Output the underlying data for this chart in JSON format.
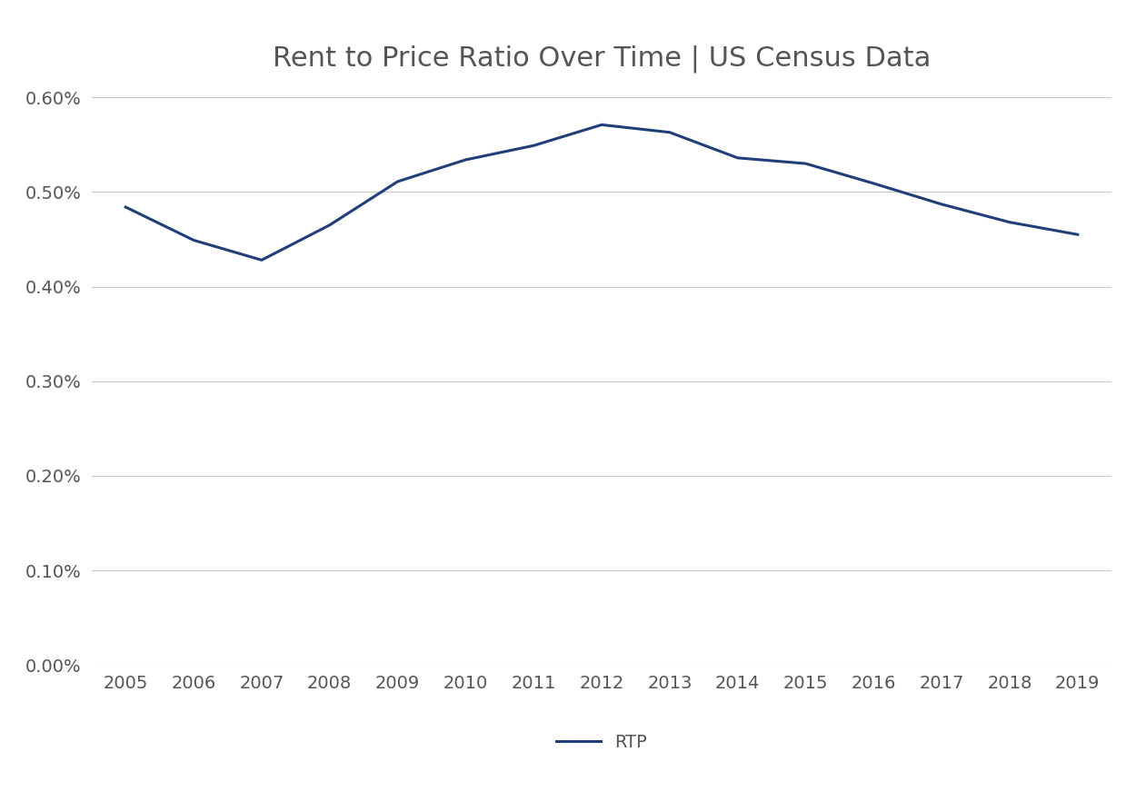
{
  "title": "Rent to Price Ratio Over Time | US Census Data",
  "years": [
    2005,
    2006,
    2007,
    2008,
    2009,
    2010,
    2011,
    2012,
    2013,
    2014,
    2015,
    2016,
    2017,
    2018,
    2019
  ],
  "rtp": [
    0.00484,
    0.00449,
    0.00428,
    0.00465,
    0.00511,
    0.00534,
    0.00549,
    0.00571,
    0.00563,
    0.00536,
    0.0053,
    0.00509,
    0.00487,
    0.00468,
    0.00455
  ],
  "line_color": "#1F3F7A",
  "line_width": 2.2,
  "background_color": "#FFFFFF",
  "grid_color": "#C8C8C8",
  "title_fontsize": 22,
  "tick_fontsize": 14,
  "legend_label": "RTP",
  "ylim": [
    0.0,
    0.006
  ],
  "yticks": [
    0.0,
    0.001,
    0.002,
    0.003,
    0.004,
    0.005,
    0.006
  ],
  "ytick_labels": [
    "0.00%",
    "0.10%",
    "0.20%",
    "0.30%",
    "0.40%",
    "0.50%",
    "0.60%"
  ]
}
